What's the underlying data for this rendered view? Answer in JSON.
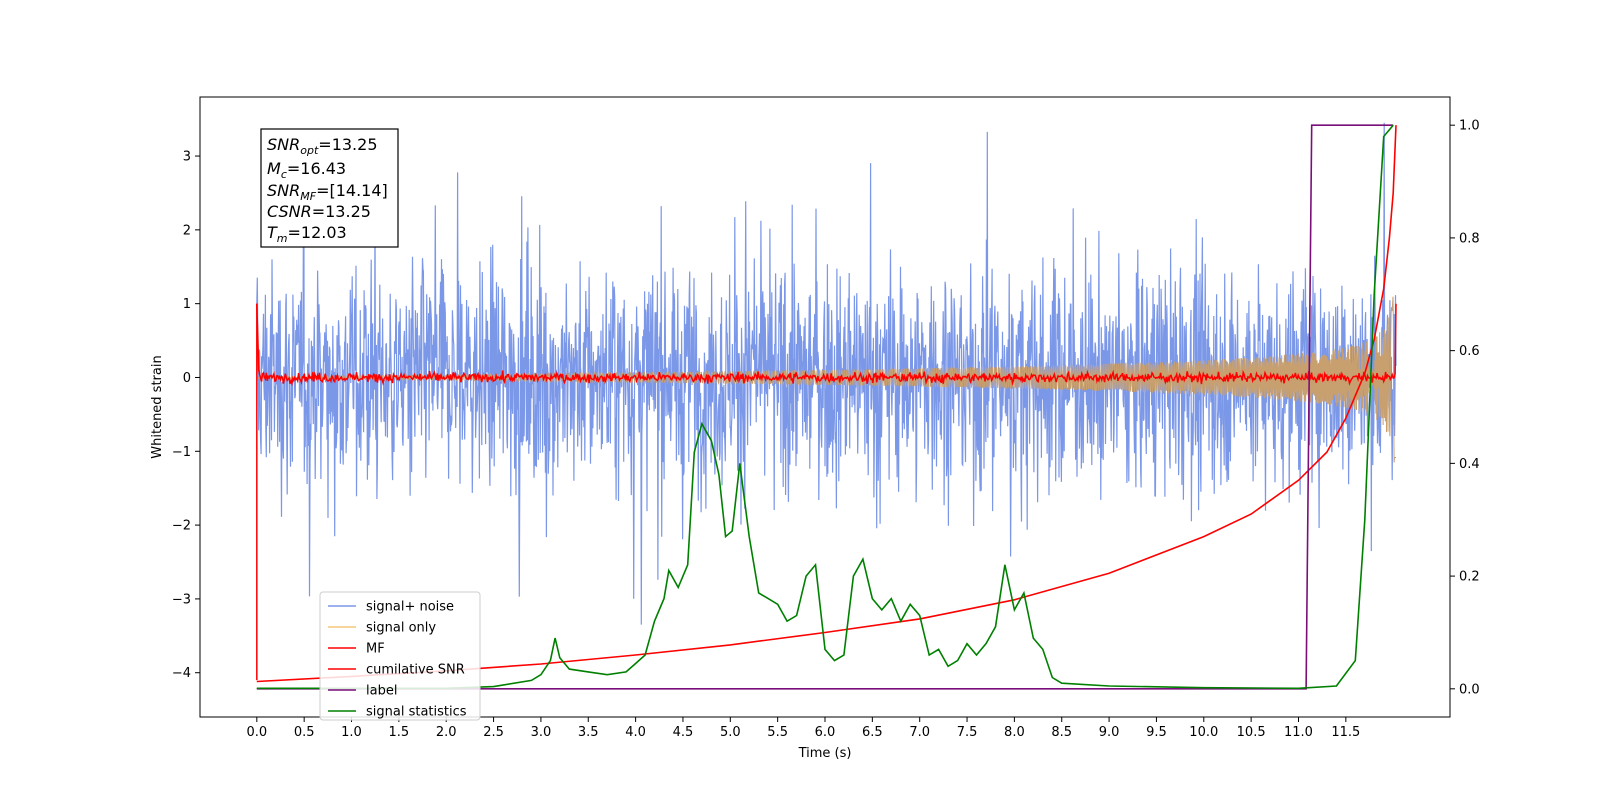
{
  "chart_data": {
    "type": "line",
    "xlabel": "Time (s)",
    "ylabel": "Whitened strain",
    "xlim": [
      -0.6,
      12.6
    ],
    "ylim": [
      -4.6,
      3.8
    ],
    "y2lim": [
      -0.05,
      1.05
    ],
    "x_ticks": [
      "0.0",
      "0.5",
      "1.0",
      "1.5",
      "2.0",
      "2.5",
      "3.0",
      "3.5",
      "4.0",
      "4.5",
      "5.0",
      "5.5",
      "6.0",
      "6.5",
      "7.0",
      "7.5",
      "8.0",
      "8.5",
      "9.0",
      "9.5",
      "10.0",
      "10.5",
      "11.0",
      "11.5"
    ],
    "y_ticks": [
      "3",
      "2",
      "1",
      "0",
      "−1",
      "−2",
      "−3",
      "−4"
    ],
    "y2_ticks": [
      "1.0",
      "0.8",
      "0.6",
      "0.4",
      "0.2",
      "0.0"
    ],
    "legend_position": "lower-left",
    "legend": [
      {
        "label": "signal+ noise",
        "color": "#7b97e8"
      },
      {
        "label": "signal only",
        "color": "#f3c97a"
      },
      {
        "label": "MF",
        "color": "#ff0000"
      },
      {
        "label": "cumilative SNR",
        "color": "#ff0000"
      },
      {
        "label": "label",
        "color": "#7a0f7a"
      },
      {
        "label": "signal statistics",
        "color": "#008000"
      }
    ],
    "info_box": {
      "snr_opt": {
        "base": "SNR",
        "sub": "opt",
        "value": "=13.25"
      },
      "mc": {
        "base": "M",
        "sub": "c",
        "value": "=16.43"
      },
      "snr_mf": {
        "base": "SNR",
        "sub": "MF",
        "value": "=[14.14]"
      },
      "csnr": {
        "base": "CSNR",
        "sub": "",
        "value": "=13.25"
      },
      "tm": {
        "base": "T",
        "sub": "m",
        "value": "=12.03"
      }
    },
    "series": [
      {
        "name": "signal+ noise",
        "axis": "left",
        "style": "noise",
        "x_range": [
          0.0,
          12.03
        ],
        "amplitude_range": [
          -3.5,
          3.45
        ],
        "color": "#7b97e8"
      },
      {
        "name": "signal only",
        "axis": "left",
        "style": "chirp",
        "x_range": [
          0.0,
          12.03
        ],
        "envelope_end": 1.3,
        "color": "#c8a070"
      },
      {
        "name": "MF",
        "axis": "left",
        "style": "mf",
        "x_range": [
          0.0,
          12.03
        ],
        "values_note": "",
        "color": "#ff0000"
      },
      {
        "name": "cumilative SNR",
        "axis": "right",
        "points": [
          [
            0.0,
            0.013
          ],
          [
            1.0,
            0.022
          ],
          [
            2.0,
            0.032
          ],
          [
            3.0,
            0.044
          ],
          [
            4.0,
            0.06
          ],
          [
            5.0,
            0.078
          ],
          [
            6.0,
            0.1
          ],
          [
            7.0,
            0.124
          ],
          [
            8.0,
            0.158
          ],
          [
            9.0,
            0.205
          ],
          [
            10.0,
            0.27
          ],
          [
            10.5,
            0.31
          ],
          [
            11.0,
            0.37
          ],
          [
            11.3,
            0.42
          ],
          [
            11.5,
            0.48
          ],
          [
            11.7,
            0.56
          ],
          [
            11.8,
            0.62
          ],
          [
            11.9,
            0.71
          ],
          [
            11.96,
            0.8
          ],
          [
            12.0,
            0.88
          ],
          [
            12.03,
            1.0
          ]
        ],
        "color": "#ff0000"
      },
      {
        "name": "label",
        "axis": "right",
        "points": [
          [
            0.0,
            0.0
          ],
          [
            11.08,
            0.0
          ],
          [
            11.14,
            1.0
          ],
          [
            12.0,
            1.0
          ]
        ],
        "color": "#7a0f7a"
      },
      {
        "name": "signal statistics",
        "axis": "right",
        "points": [
          [
            0.0,
            0.001
          ],
          [
            2.0,
            0.001
          ],
          [
            2.5,
            0.004
          ],
          [
            2.9,
            0.015
          ],
          [
            3.0,
            0.025
          ],
          [
            3.1,
            0.05
          ],
          [
            3.15,
            0.09
          ],
          [
            3.2,
            0.055
          ],
          [
            3.3,
            0.035
          ],
          [
            3.5,
            0.03
          ],
          [
            3.7,
            0.025
          ],
          [
            3.9,
            0.03
          ],
          [
            4.0,
            0.045
          ],
          [
            4.1,
            0.06
          ],
          [
            4.2,
            0.12
          ],
          [
            4.3,
            0.16
          ],
          [
            4.35,
            0.21
          ],
          [
            4.45,
            0.18
          ],
          [
            4.55,
            0.22
          ],
          [
            4.62,
            0.42
          ],
          [
            4.7,
            0.47
          ],
          [
            4.8,
            0.44
          ],
          [
            4.88,
            0.38
          ],
          [
            4.95,
            0.27
          ],
          [
            5.02,
            0.28
          ],
          [
            5.1,
            0.4
          ],
          [
            5.2,
            0.27
          ],
          [
            5.3,
            0.17
          ],
          [
            5.4,
            0.16
          ],
          [
            5.5,
            0.15
          ],
          [
            5.6,
            0.12
          ],
          [
            5.7,
            0.13
          ],
          [
            5.8,
            0.2
          ],
          [
            5.9,
            0.22
          ],
          [
            6.0,
            0.07
          ],
          [
            6.1,
            0.05
          ],
          [
            6.2,
            0.06
          ],
          [
            6.3,
            0.2
          ],
          [
            6.4,
            0.23
          ],
          [
            6.5,
            0.16
          ],
          [
            6.6,
            0.14
          ],
          [
            6.7,
            0.16
          ],
          [
            6.8,
            0.12
          ],
          [
            6.9,
            0.15
          ],
          [
            7.0,
            0.13
          ],
          [
            7.1,
            0.06
          ],
          [
            7.2,
            0.07
          ],
          [
            7.3,
            0.04
          ],
          [
            7.4,
            0.05
          ],
          [
            7.5,
            0.08
          ],
          [
            7.6,
            0.06
          ],
          [
            7.7,
            0.08
          ],
          [
            7.8,
            0.11
          ],
          [
            7.9,
            0.22
          ],
          [
            8.0,
            0.14
          ],
          [
            8.1,
            0.17
          ],
          [
            8.2,
            0.09
          ],
          [
            8.3,
            0.07
          ],
          [
            8.4,
            0.02
          ],
          [
            8.5,
            0.01
          ],
          [
            9.0,
            0.005
          ],
          [
            10.0,
            0.002
          ],
          [
            11.0,
            0.001
          ],
          [
            11.4,
            0.005
          ],
          [
            11.6,
            0.05
          ],
          [
            11.7,
            0.3
          ],
          [
            11.8,
            0.7
          ],
          [
            11.9,
            0.98
          ],
          [
            12.0,
            1.0
          ]
        ],
        "color": "#008000"
      }
    ]
  }
}
